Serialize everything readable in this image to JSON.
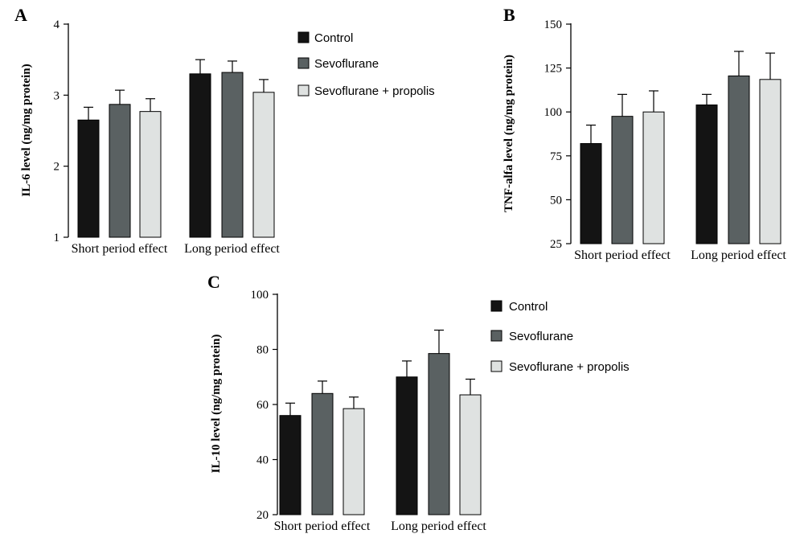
{
  "colors": {
    "Control": "#141414",
    "Sevoflurane": "#5a6162",
    "Sevoflurane + propolis": "#dfe2e1"
  },
  "legend": {
    "items": [
      "Control",
      "Sevoflurane",
      "Sevoflurane + propolis"
    ]
  },
  "chart_data": [
    {
      "panel": "A",
      "type": "bar",
      "categories": [
        "Short period effect",
        "Long period effect"
      ],
      "series": [
        {
          "name": "Control",
          "values": [
            2.65,
            3.3
          ],
          "errors": [
            0.18,
            0.2
          ]
        },
        {
          "name": "Sevoflurane",
          "values": [
            2.87,
            3.32
          ],
          "errors": [
            0.2,
            0.16
          ]
        },
        {
          "name": "Sevoflurane + propolis",
          "values": [
            2.77,
            3.04
          ],
          "errors": [
            0.18,
            0.18
          ]
        }
      ],
      "ylabel": "IL-6 level (ng/mg protein)",
      "xlabel": "",
      "ylim": [
        1,
        4
      ],
      "yticks": [
        1,
        2,
        3,
        4
      ],
      "legend": "right"
    },
    {
      "panel": "B",
      "type": "bar",
      "categories": [
        "Short period effect",
        "Long period effect"
      ],
      "series": [
        {
          "name": "Control",
          "values": [
            82,
            104
          ],
          "errors": [
            10.5,
            6
          ]
        },
        {
          "name": "Sevoflurane",
          "values": [
            97.5,
            120.5
          ],
          "errors": [
            12.5,
            14
          ]
        },
        {
          "name": "Sevoflurane + propolis",
          "values": [
            100,
            118.5
          ],
          "errors": [
            12,
            15
          ]
        }
      ],
      "ylabel": "TNF-alfa level (ng/mg protein)",
      "xlabel": "",
      "ylim": [
        25,
        150
      ],
      "yticks": [
        25,
        50,
        75,
        100,
        125,
        150
      ],
      "legend": "none"
    },
    {
      "panel": "C",
      "type": "bar",
      "categories": [
        "Short period effect",
        "Long period effect"
      ],
      "series": [
        {
          "name": "Control",
          "values": [
            56,
            70
          ],
          "errors": [
            4.5,
            5.8
          ]
        },
        {
          "name": "Sevoflurane",
          "values": [
            64,
            78.5
          ],
          "errors": [
            4.5,
            8.5
          ]
        },
        {
          "name": "Sevoflurane + propolis",
          "values": [
            58.5,
            63.5
          ],
          "errors": [
            4.2,
            5.7
          ]
        }
      ],
      "ylabel": "IL-10 level (ng/mg protein)",
      "xlabel": "",
      "ylim": [
        20,
        100
      ],
      "yticks": [
        20,
        40,
        60,
        80,
        100
      ],
      "legend": "right"
    }
  ]
}
